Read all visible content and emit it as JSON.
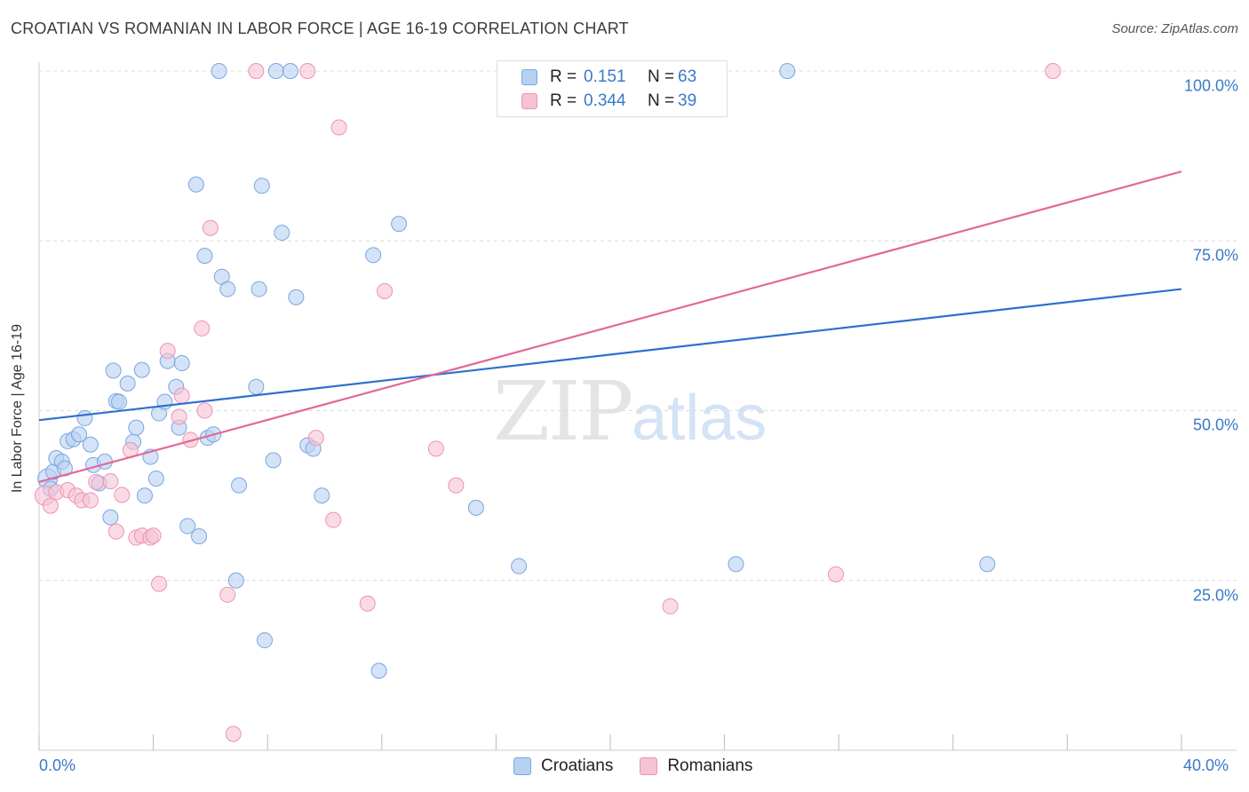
{
  "title": "CROATIAN VS ROMANIAN IN LABOR FORCE | AGE 16-19 CORRELATION CHART",
  "source": "Source: ZipAtlas.com",
  "watermark": {
    "zip": "ZIP",
    "atlas": "atlas"
  },
  "colors": {
    "croatians_fill": "#b7d1f2",
    "croatians_stroke": "#7aa6de",
    "croatians_line": "#2f6fcf",
    "romanians_fill": "#f6c3d3",
    "romanians_stroke": "#ec93b0",
    "romanians_line": "#e2689a",
    "accent_text": "#3b78c8"
  },
  "legend": {
    "rows": [
      {
        "r_label": "R =",
        "r_value": "0.151",
        "n_label": "N =",
        "n_value": "63"
      },
      {
        "r_label": "R =",
        "r_value": "0.344",
        "n_label": "N =",
        "n_value": "39"
      }
    ]
  },
  "bottom_legend": {
    "croatians": "Croatians",
    "romanians": "Romanians"
  },
  "chart_data": {
    "type": "scatter",
    "title": "CROATIAN VS ROMANIAN IN LABOR FORCE | AGE 16-19 CORRELATION CHART",
    "xlabel": "",
    "ylabel": "In Labor Force | Age 16-19",
    "xlim": [
      0,
      40
    ],
    "ylim": [
      0,
      102.5
    ],
    "x_tick_labels": [
      "0.0%",
      "40.0%"
    ],
    "y_ticks": [
      25,
      50,
      75,
      100
    ],
    "y_tick_labels": [
      "25.0%",
      "50.0%",
      "75.0%",
      "100.0%"
    ],
    "grid": "horizontal dashed",
    "legend_placement": "top-center",
    "series": [
      {
        "name": "Croatians",
        "r": 0.151,
        "n": 63,
        "trend": {
          "x": [
            0,
            40
          ],
          "y": [
            48.6,
            67.9
          ]
        },
        "points": [
          [
            0.3,
            40.0
          ],
          [
            0.4,
            38.5
          ],
          [
            0.5,
            41.0
          ],
          [
            0.6,
            43.0
          ],
          [
            0.8,
            42.5
          ],
          [
            0.9,
            41.5
          ],
          [
            1.0,
            45.5
          ],
          [
            1.2,
            45.8
          ],
          [
            1.4,
            46.5
          ],
          [
            1.6,
            48.9
          ],
          [
            1.8,
            45.0
          ],
          [
            1.9,
            42.0
          ],
          [
            2.1,
            39.3
          ],
          [
            2.3,
            42.5
          ],
          [
            2.5,
            34.3
          ],
          [
            2.6,
            55.9
          ],
          [
            2.7,
            51.4
          ],
          [
            2.8,
            51.3
          ],
          [
            3.1,
            54.0
          ],
          [
            3.3,
            45.4
          ],
          [
            3.4,
            47.5
          ],
          [
            3.6,
            56.0
          ],
          [
            3.7,
            37.5
          ],
          [
            3.9,
            43.2
          ],
          [
            4.1,
            40.0
          ],
          [
            4.2,
            49.6
          ],
          [
            4.4,
            51.3
          ],
          [
            4.5,
            57.3
          ],
          [
            4.8,
            53.5
          ],
          [
            4.9,
            47.5
          ],
          [
            5.0,
            57.0
          ],
          [
            5.2,
            33.0
          ],
          [
            5.5,
            83.3
          ],
          [
            5.6,
            31.5
          ],
          [
            5.8,
            72.8
          ],
          [
            5.9,
            46.0
          ],
          [
            6.1,
            46.5
          ],
          [
            6.3,
            100.0
          ],
          [
            6.4,
            69.7
          ],
          [
            6.6,
            67.9
          ],
          [
            6.9,
            25.0
          ],
          [
            7.0,
            39.0
          ],
          [
            7.6,
            53.5
          ],
          [
            7.7,
            67.9
          ],
          [
            7.8,
            83.1
          ],
          [
            7.9,
            16.2
          ],
          [
            8.2,
            42.7
          ],
          [
            8.3,
            100.0
          ],
          [
            8.5,
            76.2
          ],
          [
            8.8,
            100.0
          ],
          [
            9.0,
            66.7
          ],
          [
            9.4,
            44.9
          ],
          [
            9.6,
            44.4
          ],
          [
            9.9,
            37.5
          ],
          [
            11.7,
            72.9
          ],
          [
            11.9,
            11.7
          ],
          [
            12.6,
            77.5
          ],
          [
            15.3,
            35.7
          ],
          [
            16.8,
            27.1
          ],
          [
            22.6,
            100.0
          ],
          [
            24.4,
            27.4
          ],
          [
            26.2,
            100.0
          ],
          [
            33.2,
            27.4
          ]
        ]
      },
      {
        "name": "Romanians",
        "r": 0.344,
        "n": 39,
        "trend": {
          "x": [
            0,
            40
          ],
          "y": [
            39.5,
            85.2
          ]
        },
        "points": [
          [
            0.2,
            37.5
          ],
          [
            0.4,
            36.0
          ],
          [
            0.6,
            38.0
          ],
          [
            1.0,
            38.3
          ],
          [
            1.3,
            37.5
          ],
          [
            1.5,
            36.8
          ],
          [
            1.8,
            36.8
          ],
          [
            2.0,
            39.5
          ],
          [
            2.5,
            39.6
          ],
          [
            2.7,
            32.2
          ],
          [
            2.9,
            37.6
          ],
          [
            3.2,
            44.2
          ],
          [
            3.4,
            31.3
          ],
          [
            3.6,
            31.6
          ],
          [
            3.9,
            31.3
          ],
          [
            4.0,
            31.6
          ],
          [
            4.2,
            24.5
          ],
          [
            4.5,
            58.8
          ],
          [
            4.9,
            49.1
          ],
          [
            5.0,
            52.2
          ],
          [
            5.3,
            45.7
          ],
          [
            5.7,
            62.1
          ],
          [
            5.8,
            50.0
          ],
          [
            6.0,
            76.9
          ],
          [
            6.6,
            22.9
          ],
          [
            6.8,
            2.4
          ],
          [
            7.6,
            100.0
          ],
          [
            9.4,
            100.0
          ],
          [
            9.7,
            46.0
          ],
          [
            10.3,
            33.9
          ],
          [
            10.5,
            91.7
          ],
          [
            11.5,
            21.6
          ],
          [
            12.1,
            67.6
          ],
          [
            13.9,
            44.4
          ],
          [
            14.6,
            39.0
          ],
          [
            16.4,
            100.0
          ],
          [
            22.1,
            21.2
          ],
          [
            27.9,
            25.9
          ],
          [
            35.5,
            100.0
          ]
        ]
      }
    ]
  }
}
